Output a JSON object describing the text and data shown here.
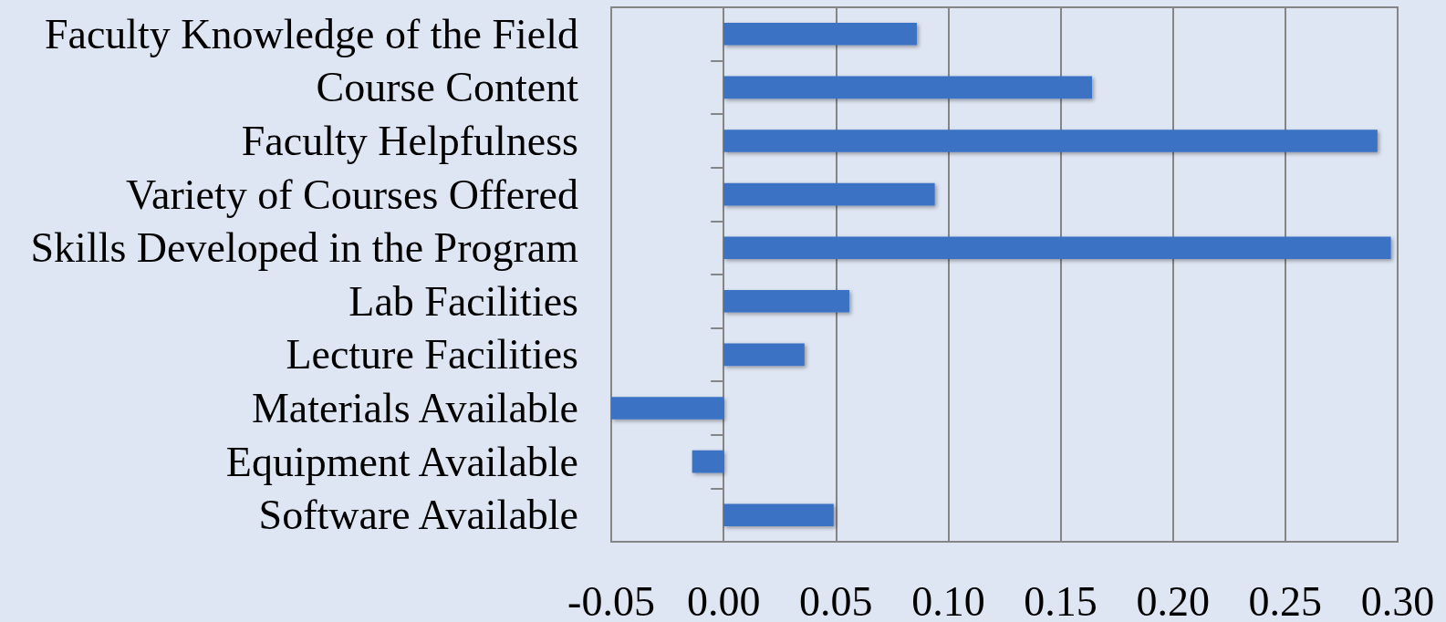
{
  "chart_data": {
    "type": "bar",
    "orientation": "horizontal",
    "categories": [
      "Faculty Knowledge of the Field",
      "Course Content",
      "Faculty Helpfulness",
      "Variety of Courses Offered",
      "Skills Developed in the Program",
      "Lab Facilities",
      "Lecture Facilities",
      "Materials Available",
      "Equipment Available",
      "Software Available"
    ],
    "values": [
      0.086,
      0.164,
      0.291,
      0.094,
      0.297,
      0.056,
      0.036,
      -0.05,
      -0.014,
      0.049
    ],
    "color": "#3a72c4",
    "xlim": [
      -0.05,
      0.3
    ],
    "xticks": [
      {
        "value": -0.05,
        "label": "-0.05"
      },
      {
        "value": 0,
        "label": "0.00"
      },
      {
        "value": 0.05,
        "label": "0.05"
      },
      {
        "value": 0.1,
        "label": "0.10"
      },
      {
        "value": 0.15,
        "label": "0.15"
      },
      {
        "value": 0.2,
        "label": "0.20"
      },
      {
        "value": 0.25,
        "label": "0.25"
      },
      {
        "value": 0.3,
        "label": "0.30"
      }
    ],
    "grid": "x"
  }
}
